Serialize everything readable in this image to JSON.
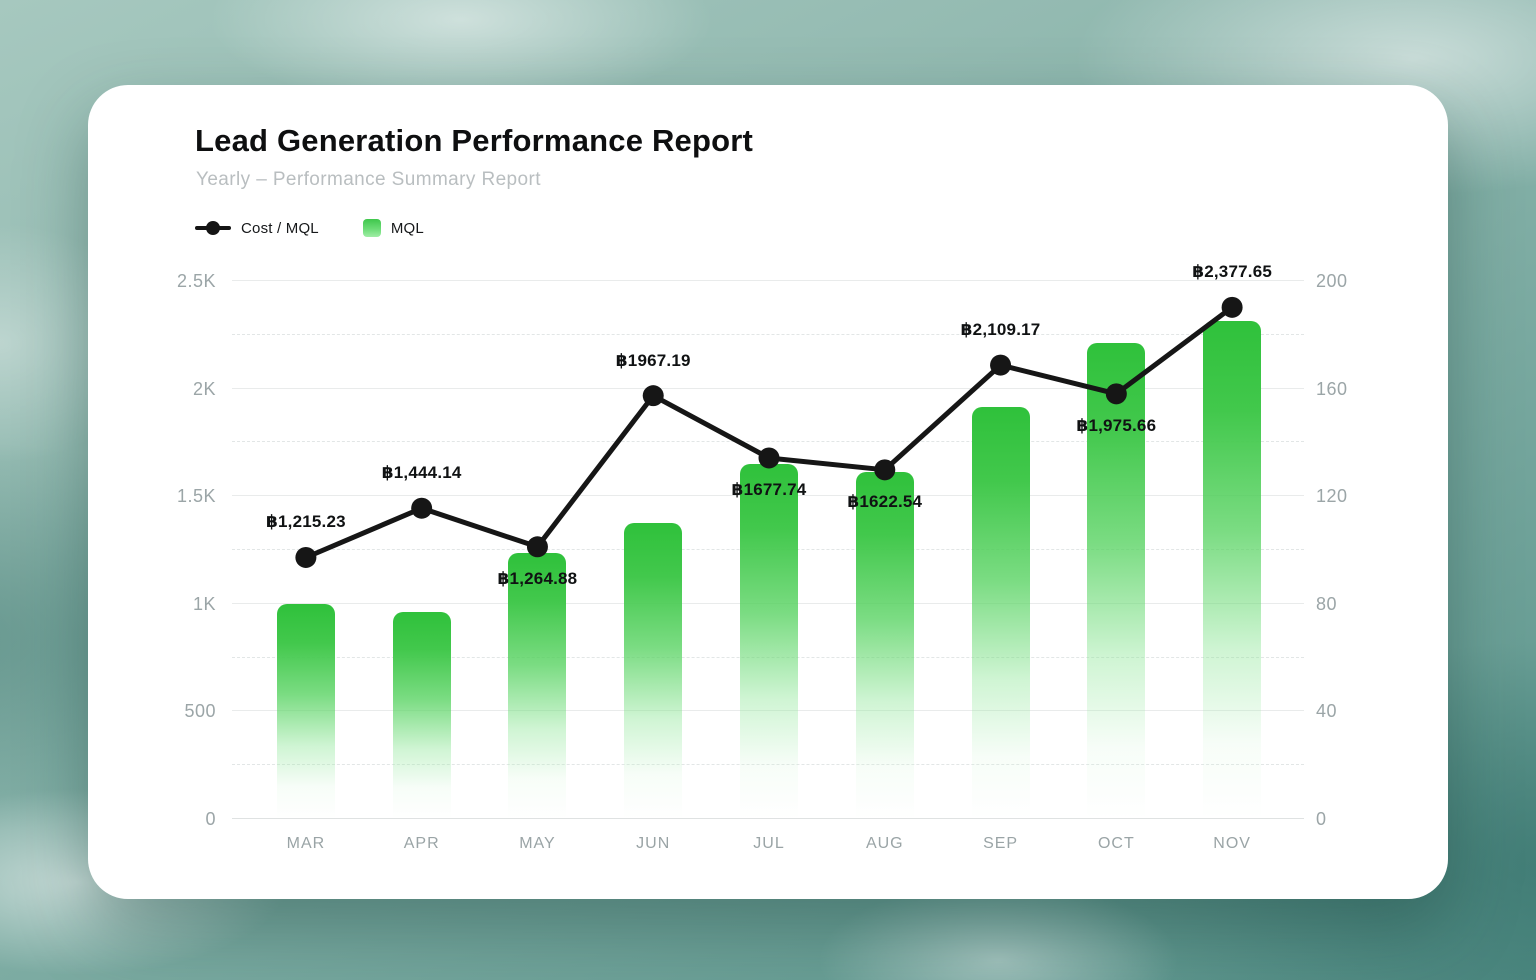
{
  "page": {
    "title": "Lead Generation Performance Report",
    "subtitle": "Yearly – Performance Summary Report"
  },
  "legend": {
    "items": [
      {
        "label": "Cost / MQL",
        "icon": "line-dot-icon"
      },
      {
        "label": "MQL",
        "icon": "green-swatch-icon"
      }
    ]
  },
  "colors": {
    "line": "#161616",
    "bar_top": "#2fc13b",
    "bar_bottom": "#ffffff",
    "axis_text": "#9ba5a7",
    "card_bg": "#ffffff"
  },
  "chart_data": {
    "type": "bar",
    "subtype": "combo-bar-line",
    "categories": [
      "MAR",
      "APR",
      "MAY",
      "JUN",
      "JUL",
      "AUG",
      "SEP",
      "OCT",
      "NOV"
    ],
    "series": [
      {
        "name": "Cost / MQL",
        "type": "line",
        "axis": "left",
        "values": [
          1215.23,
          1444.14,
          1264.88,
          1967.19,
          1677.74,
          1622.54,
          2109.17,
          1975.66,
          2377.65
        ],
        "point_labels": [
          "฿1,215.23",
          "฿1,444.14",
          "฿1,264.88",
          "฿1967.19",
          "฿1677.74",
          "฿1622.54",
          "฿2,109.17",
          "฿1,975.66",
          "฿2,377.65"
        ],
        "label_position": [
          "above",
          "above",
          "below",
          "above",
          "below",
          "below",
          "above",
          "below",
          "above"
        ]
      },
      {
        "name": "MQL",
        "type": "bar",
        "axis": "right",
        "values": [
          80,
          77,
          99,
          110,
          132,
          129,
          153,
          177,
          185
        ]
      }
    ],
    "left_axis": {
      "min": 0,
      "max": 2500,
      "ticks": [
        "0",
        "500",
        "1K",
        "1.5K",
        "2K",
        "2.5K"
      ],
      "tick_values": [
        0,
        500,
        1000,
        1500,
        2000,
        2500
      ]
    },
    "right_axis": {
      "min": 0,
      "max": 200,
      "ticks": [
        "0",
        "40",
        "80",
        "120",
        "160",
        "200"
      ],
      "tick_values": [
        0,
        40,
        80,
        120,
        160,
        200
      ]
    },
    "grid": {
      "major_step": 500,
      "minor_step": 250,
      "minor_style": "dashed"
    },
    "legend_position": "top-left",
    "title": "Lead Generation Performance Report",
    "subtitle": "Yearly – Performance Summary Report"
  }
}
